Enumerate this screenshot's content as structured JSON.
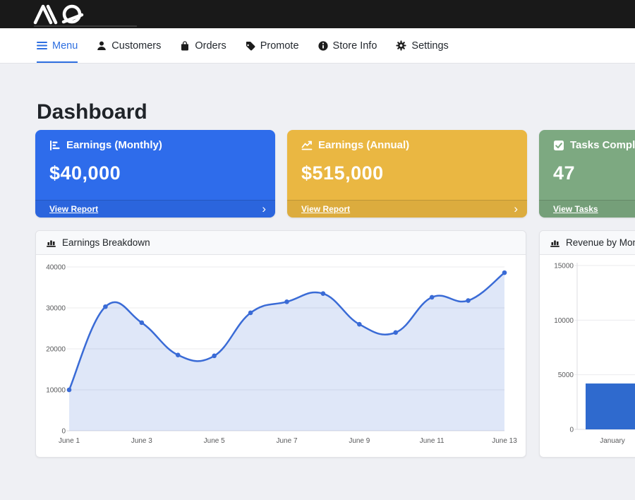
{
  "topbar": {
    "logo_text": "MQ",
    "bg_color": "#191919"
  },
  "nav": {
    "items": [
      {
        "label": "Menu",
        "icon": "hamburger-icon",
        "active": true
      },
      {
        "label": "Customers",
        "icon": "person-icon",
        "active": false
      },
      {
        "label": "Orders",
        "icon": "bag-icon",
        "active": false
      },
      {
        "label": "Promote",
        "icon": "tag-icon",
        "active": false
      },
      {
        "label": "Store Info",
        "icon": "info-icon",
        "active": false
      },
      {
        "label": "Settings",
        "icon": "gear-icon",
        "active": false
      }
    ],
    "active_color": "#2e6fe0"
  },
  "page": {
    "title": "Dashboard"
  },
  "icons": {
    "chevron_right": "›"
  },
  "summary_cards": [
    {
      "title": "Earnings (Monthly)",
      "value": "$40,000",
      "link_label": "View Report",
      "color": "#2e6ceb",
      "icon": "bar-chart-icon"
    },
    {
      "title": "Earnings (Annual)",
      "value": "$515,000",
      "link_label": "View Report",
      "color": "#eab742",
      "icon": "line-chart-icon"
    },
    {
      "title": "Tasks Completed",
      "value": "47",
      "link_label": "View Tasks",
      "color": "#7da981",
      "icon": "check-square-icon"
    }
  ],
  "panels": [
    {
      "title": "Earnings Breakdown",
      "icon": "bar-chart-line-icon"
    },
    {
      "title": "Revenue by Month",
      "icon": "bar-chart-line-icon"
    }
  ],
  "chart_data": [
    {
      "type": "line",
      "title": "Earnings Breakdown",
      "x": [
        "June 1",
        "June 2",
        "June 3",
        "June 4",
        "June 5",
        "June 6",
        "June 7",
        "June 8",
        "June 9",
        "June 10",
        "June 11",
        "June 12",
        "June 13"
      ],
      "values": [
        10000,
        30300,
        26400,
        18500,
        18300,
        28800,
        31500,
        33500,
        26000,
        24000,
        32600,
        31800,
        38600
      ],
      "xtick_labels": [
        "June 1",
        "June 3",
        "June 5",
        "June 7",
        "June 9",
        "June 11",
        "June 13"
      ],
      "yticks": [
        0,
        10000,
        20000,
        30000,
        40000
      ],
      "ylim": [
        0,
        40000
      ],
      "line_color": "#3a6bd6",
      "fill_color": "rgba(58,107,214,0.16)",
      "grid": true,
      "legend": false
    },
    {
      "type": "bar",
      "title": "Revenue by Month",
      "categories": [
        "January"
      ],
      "values": [
        4200
      ],
      "yticks": [
        0,
        5000,
        10000,
        15000
      ],
      "ylim": [
        0,
        15000
      ],
      "bar_color": "#2f6ace",
      "grid": true,
      "legend": false
    }
  ]
}
